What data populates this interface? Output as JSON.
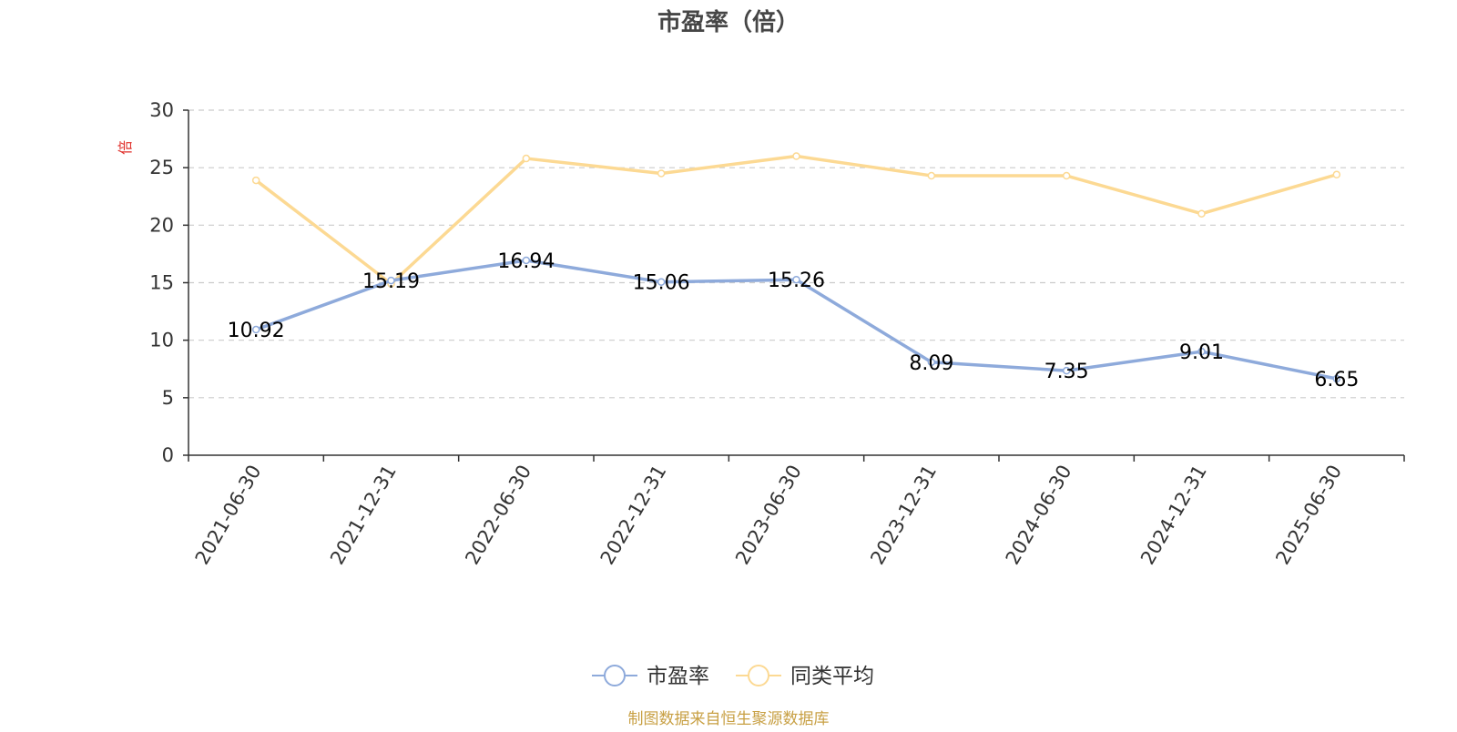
{
  "chart_data": {
    "type": "line",
    "title": "市盈率（倍）",
    "ylabel": "倍",
    "xlabel": "",
    "categories": [
      "2021-06-30",
      "2021-12-31",
      "2022-06-30",
      "2022-12-31",
      "2023-06-30",
      "2023-12-31",
      "2024-06-30",
      "2024-12-31",
      "2025-06-30"
    ],
    "series": [
      {
        "name": "市盈率",
        "values": [
          10.92,
          15.19,
          16.94,
          15.06,
          15.26,
          8.09,
          7.35,
          9.01,
          6.65
        ],
        "labels": [
          "10.92",
          "15.19",
          "16.94",
          "15.06",
          "15.26",
          "8.09",
          "7.35",
          "9.01",
          "6.65"
        ],
        "color": "#8eaadb"
      },
      {
        "name": "同类平均",
        "values": [
          23.9,
          14.9,
          25.8,
          24.5,
          26.0,
          24.3,
          24.3,
          21.0,
          24.4
        ],
        "color": "#fcd993"
      }
    ],
    "ylim": [
      0,
      30
    ],
    "yticks": [
      "0",
      "5",
      "10",
      "15",
      "20",
      "25",
      "30"
    ],
    "grid": true,
    "legend_position": "bottom-center",
    "source": "制图数据来自恒生聚源数据库",
    "colors": {
      "axis": "#333333",
      "grid": "#cccccc",
      "title": "#464646",
      "ylabel": "#e0312c",
      "source": "#c8a044",
      "data_label": "#000000"
    }
  }
}
